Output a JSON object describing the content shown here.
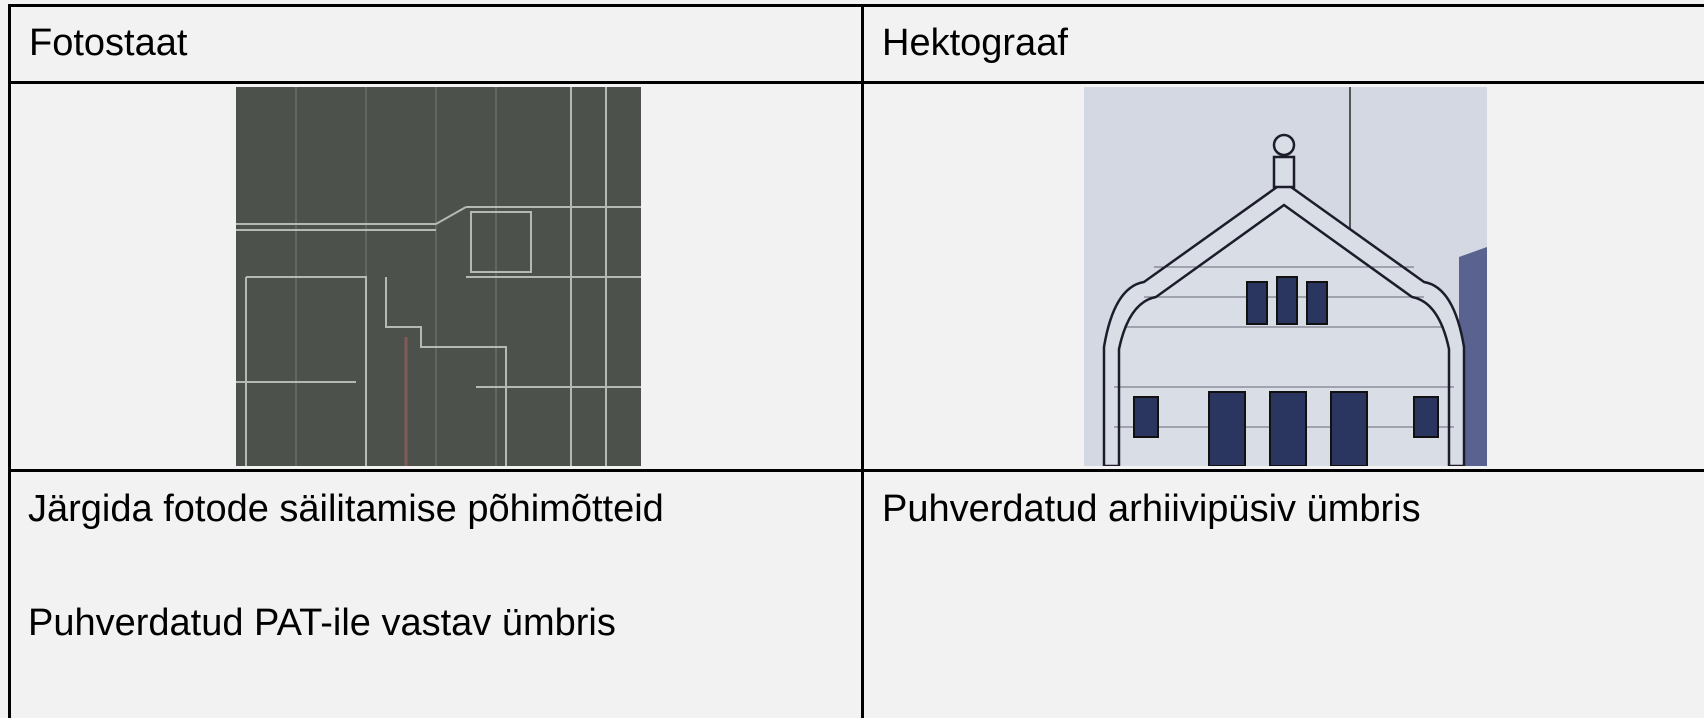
{
  "table": {
    "header": [
      "Fotostaat",
      "Hektograaf"
    ],
    "rows": [
      [
        [
          "Järgida fotode säilitamise põhimõtteid",
          "Puhverdatud PAT-ile vastav ümbris"
        ],
        [
          "Puhverdatud arhiivipüsiv ümbris"
        ]
      ]
    ]
  }
}
